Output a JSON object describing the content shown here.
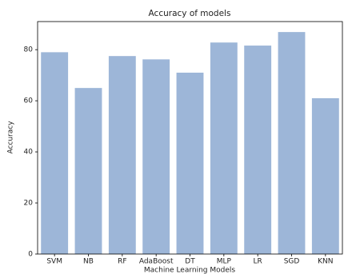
{
  "chart_data": {
    "type": "bar",
    "title": "Accuracy of models",
    "x_label": "Machine Learning Models",
    "y_label": "Accuracy",
    "categories": [
      "SVM",
      "NB",
      "RF",
      "AdaBoost",
      "DT",
      "MLP",
      "LR",
      "SGD",
      "KNN"
    ],
    "values": [
      79,
      65,
      77.5,
      76.2,
      71,
      82.8,
      81.6,
      86.9,
      61
    ],
    "color": "#9db6d8",
    "ylim": [
      0,
      91
    ],
    "yticks": [
      0,
      20,
      40,
      60,
      80
    ]
  }
}
